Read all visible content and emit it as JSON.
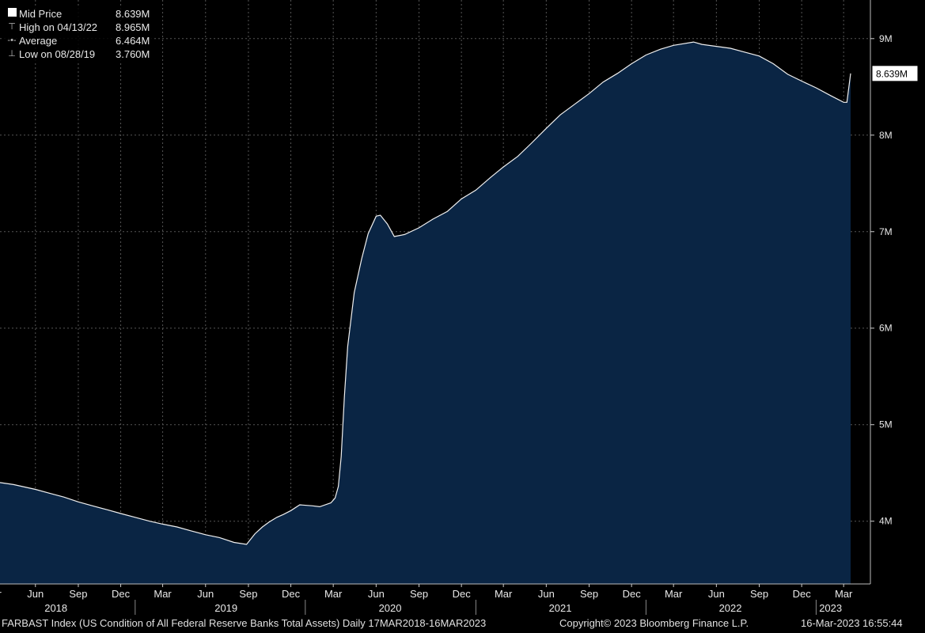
{
  "legend": {
    "items": [
      {
        "label": "Mid Price",
        "value": "8.639M"
      },
      {
        "label": "High on 04/13/22",
        "value": "8.965M"
      },
      {
        "label": "Average",
        "value": "6.464M"
      },
      {
        "label": "Low on 08/28/19",
        "value": "3.760M"
      }
    ]
  },
  "footer": {
    "description": "FARBAST Index (US Condition of All Federal Reserve Banks Total Assets)  Daily 17MAR2018-16MAR2023",
    "copyright": "Copyright© 2023 Bloomberg Finance L.P.",
    "timestamp": "16-Mar-2023 16:55:44"
  },
  "chart_data": {
    "type": "area",
    "title": "",
    "xlabel": "",
    "ylabel": "",
    "y_unit": "M",
    "ylim": [
      3.35,
      9.4
    ],
    "xlim": [
      "2018-03-17",
      "2023-03-16"
    ],
    "y_ticks": [
      {
        "value": 4,
        "label": "4M"
      },
      {
        "value": 5,
        "label": "5M"
      },
      {
        "value": 6,
        "label": "6M"
      },
      {
        "value": 7,
        "label": "7M"
      },
      {
        "value": 8,
        "label": "8M"
      },
      {
        "value": 9,
        "label": "9M"
      }
    ],
    "x_ticks": [
      {
        "date": "2018-03-01",
        "label": "Mar"
      },
      {
        "date": "2018-06-01",
        "label": "Jun"
      },
      {
        "date": "2018-09-01",
        "label": "Sep"
      },
      {
        "date": "2018-12-01",
        "label": "Dec"
      },
      {
        "date": "2019-03-01",
        "label": "Mar"
      },
      {
        "date": "2019-06-01",
        "label": "Jun"
      },
      {
        "date": "2019-09-01",
        "label": "Sep"
      },
      {
        "date": "2019-12-01",
        "label": "Dec"
      },
      {
        "date": "2020-03-01",
        "label": "Mar"
      },
      {
        "date": "2020-06-01",
        "label": "Jun"
      },
      {
        "date": "2020-09-01",
        "label": "Sep"
      },
      {
        "date": "2020-12-01",
        "label": "Dec"
      },
      {
        "date": "2021-03-01",
        "label": "Mar"
      },
      {
        "date": "2021-06-01",
        "label": "Jun"
      },
      {
        "date": "2021-09-01",
        "label": "Sep"
      },
      {
        "date": "2021-12-01",
        "label": "Dec"
      },
      {
        "date": "2022-03-01",
        "label": "Mar"
      },
      {
        "date": "2022-06-01",
        "label": "Jun"
      },
      {
        "date": "2022-09-01",
        "label": "Sep"
      },
      {
        "date": "2022-12-01",
        "label": "Dec"
      },
      {
        "date": "2023-03-01",
        "label": "Mar"
      }
    ],
    "year_labels": [
      {
        "date": "2018-07-15",
        "label": "2018"
      },
      {
        "date": "2019-07-15",
        "label": "2019"
      },
      {
        "date": "2020-07-01",
        "label": "2020"
      },
      {
        "date": "2021-07-01",
        "label": "2021"
      },
      {
        "date": "2022-07-01",
        "label": "2022"
      },
      {
        "date": "2023-02-01",
        "label": "2023"
      }
    ],
    "last_value_label": "8.639M",
    "series": [
      {
        "name": "Mid Price",
        "points": [
          [
            "2018-03-17",
            4.4
          ],
          [
            "2018-04-15",
            4.38
          ],
          [
            "2018-06-01",
            4.33
          ],
          [
            "2018-07-01",
            4.29
          ],
          [
            "2018-08-01",
            4.25
          ],
          [
            "2018-09-01",
            4.2
          ],
          [
            "2018-10-01",
            4.16
          ],
          [
            "2018-11-01",
            4.12
          ],
          [
            "2018-12-01",
            4.08
          ],
          [
            "2019-01-01",
            4.04
          ],
          [
            "2019-02-01",
            4.0
          ],
          [
            "2019-03-01",
            3.97
          ],
          [
            "2019-04-01",
            3.94
          ],
          [
            "2019-05-01",
            3.9
          ],
          [
            "2019-06-01",
            3.86
          ],
          [
            "2019-07-01",
            3.83
          ],
          [
            "2019-08-01",
            3.78
          ],
          [
            "2019-08-28",
            3.76
          ],
          [
            "2019-09-15",
            3.87
          ],
          [
            "2019-10-01",
            3.94
          ],
          [
            "2019-10-15",
            3.99
          ],
          [
            "2019-11-01",
            4.04
          ],
          [
            "2019-11-15",
            4.07
          ],
          [
            "2019-12-01",
            4.11
          ],
          [
            "2019-12-20",
            4.17
          ],
          [
            "2020-01-15",
            4.16
          ],
          [
            "2020-02-01",
            4.15
          ],
          [
            "2020-02-25",
            4.19
          ],
          [
            "2020-03-05",
            4.24
          ],
          [
            "2020-03-12",
            4.36
          ],
          [
            "2020-03-18",
            4.67
          ],
          [
            "2020-03-25",
            5.3
          ],
          [
            "2020-04-01",
            5.81
          ],
          [
            "2020-04-15",
            6.37
          ],
          [
            "2020-05-01",
            6.72
          ],
          [
            "2020-05-15",
            6.98
          ],
          [
            "2020-06-01",
            7.16
          ],
          [
            "2020-06-10",
            7.17
          ],
          [
            "2020-06-25",
            7.08
          ],
          [
            "2020-07-10",
            6.95
          ],
          [
            "2020-08-01",
            6.97
          ],
          [
            "2020-09-01",
            7.04
          ],
          [
            "2020-10-01",
            7.13
          ],
          [
            "2020-11-01",
            7.21
          ],
          [
            "2020-12-01",
            7.34
          ],
          [
            "2021-01-01",
            7.43
          ],
          [
            "2021-02-01",
            7.56
          ],
          [
            "2021-03-01",
            7.67
          ],
          [
            "2021-04-01",
            7.78
          ],
          [
            "2021-05-01",
            7.92
          ],
          [
            "2021-06-01",
            8.07
          ],
          [
            "2021-07-01",
            8.21
          ],
          [
            "2021-08-01",
            8.32
          ],
          [
            "2021-09-01",
            8.43
          ],
          [
            "2021-10-01",
            8.55
          ],
          [
            "2021-11-01",
            8.64
          ],
          [
            "2021-12-01",
            8.74
          ],
          [
            "2022-01-01",
            8.83
          ],
          [
            "2022-02-01",
            8.89
          ],
          [
            "2022-03-01",
            8.93
          ],
          [
            "2022-04-13",
            8.965
          ],
          [
            "2022-05-01",
            8.94
          ],
          [
            "2022-06-01",
            8.92
          ],
          [
            "2022-07-01",
            8.9
          ],
          [
            "2022-08-01",
            8.86
          ],
          [
            "2022-09-01",
            8.82
          ],
          [
            "2022-10-01",
            8.74
          ],
          [
            "2022-11-01",
            8.63
          ],
          [
            "2022-12-01",
            8.56
          ],
          [
            "2023-01-01",
            8.49
          ],
          [
            "2023-02-01",
            8.41
          ],
          [
            "2023-03-01",
            8.34
          ],
          [
            "2023-03-08",
            8.34
          ],
          [
            "2023-03-16",
            8.639
          ]
        ]
      }
    ]
  }
}
